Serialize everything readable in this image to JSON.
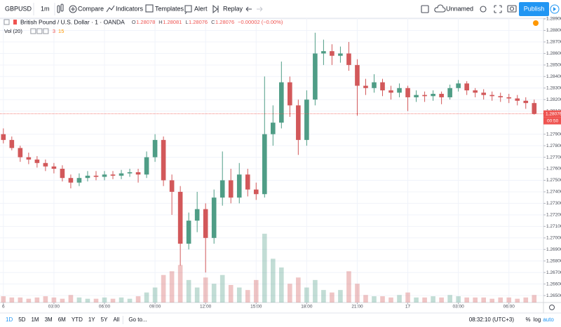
{
  "toolbar": {
    "symbol": "GBPUSD",
    "interval": "1m",
    "buttons": [
      "Compare",
      "Indicators",
      "Templates",
      "Alert",
      "Replay"
    ],
    "layout_name": "Unnamed",
    "publish": "Publish"
  },
  "legend": {
    "title": "British Pound / U.S. Dollar · 1 · OANDA",
    "ohlc": [
      {
        "key": "O",
        "value": "1.28078"
      },
      {
        "key": "H",
        "value": "1.28081"
      },
      {
        "key": "L",
        "value": "1.28076"
      },
      {
        "key": "C",
        "value": "1.28076"
      }
    ],
    "change": "−0.00002 (−0.00%)",
    "volume_label": "Vol (20)",
    "volume_values": [
      "3",
      "15"
    ]
  },
  "bottom_bar": {
    "ranges": [
      "1D",
      "5D",
      "1M",
      "3M",
      "6M",
      "YTD",
      "1Y",
      "5Y",
      "All"
    ],
    "goto": "Go to...",
    "clock": "08:32:10 (UTC+3)",
    "options": [
      "%",
      "log",
      "auto"
    ]
  },
  "chart_data": {
    "type": "candlestick",
    "x": [
      0,
      0.5,
      1,
      1.5,
      2,
      2.5,
      3,
      3.5,
      4,
      4.5,
      5,
      5.5,
      6,
      6.5,
      7,
      7.5,
      8,
      8.5,
      9,
      9.5,
      10,
      10.5,
      11,
      11.5,
      12,
      12.5,
      13,
      13.5,
      14,
      14.5,
      15,
      15.5,
      16,
      16.5,
      17,
      17.5,
      18,
      18.5,
      19,
      19.5,
      20,
      20.5,
      21,
      21.5,
      22,
      22.5,
      23,
      23.5,
      24,
      24.5,
      25,
      25.5,
      26,
      26.5,
      27,
      27.5,
      28,
      28.5,
      29,
      29.5,
      30,
      30.5,
      31,
      31.5
    ],
    "open": [
      1.279,
      1.2785,
      1.2778,
      1.277,
      1.2768,
      1.2765,
      1.2762,
      1.276,
      1.2752,
      1.2748,
      1.2752,
      1.2754,
      1.2753,
      1.2755,
      1.2754,
      1.2756,
      1.2757,
      1.2755,
      1.277,
      1.2785,
      1.275,
      1.274,
      1.2695,
      1.2715,
      1.2725,
      1.27,
      1.2735,
      1.275,
      1.2735,
      1.2755,
      1.2742,
      1.2738,
      1.279,
      1.28,
      1.2835,
      1.2815,
      1.2785,
      1.282,
      1.286,
      1.2862,
      1.2858,
      1.286,
      1.285,
      1.2832,
      1.283,
      1.2835,
      1.2828,
      1.2826,
      1.283,
      1.2822,
      1.2824,
      1.2823,
      1.2825,
      1.2822,
      1.283,
      1.2834,
      1.2828,
      1.2826,
      1.2824,
      1.2823,
      1.2822,
      1.2821,
      1.2819,
      1.2817
    ],
    "high": [
      1.2795,
      1.2788,
      1.278,
      1.2774,
      1.2771,
      1.2768,
      1.2765,
      1.2763,
      1.2755,
      1.2756,
      1.2758,
      1.2758,
      1.2758,
      1.2758,
      1.2759,
      1.276,
      1.276,
      1.2775,
      1.279,
      1.2788,
      1.2755,
      1.2745,
      1.2722,
      1.274,
      1.273,
      1.2742,
      1.2775,
      1.276,
      1.2765,
      1.276,
      1.2748,
      1.284,
      1.2815,
      1.2853,
      1.284,
      1.282,
      1.2828,
      1.2878,
      1.2872,
      1.2868,
      1.2866,
      1.287,
      1.2855,
      1.2838,
      1.2842,
      1.2838,
      1.2832,
      1.2834,
      1.2832,
      1.2828,
      1.2827,
      1.2828,
      1.2827,
      1.2833,
      1.2837,
      1.2836,
      1.283,
      1.2829,
      1.2827,
      1.2826,
      1.2825,
      1.2824,
      1.2822,
      1.282
    ],
    "low": [
      1.2782,
      1.2776,
      1.2766,
      1.2764,
      1.2761,
      1.2758,
      1.2756,
      1.2749,
      1.2743,
      1.2745,
      1.2749,
      1.275,
      1.275,
      1.2751,
      1.2751,
      1.2753,
      1.2748,
      1.2752,
      1.2766,
      1.2745,
      1.272,
      1.2676,
      1.269,
      1.2705,
      1.267,
      1.2695,
      1.2728,
      1.273,
      1.273,
      1.2736,
      1.2733,
      1.2735,
      1.278,
      1.2795,
      1.2805,
      1.2772,
      1.278,
      1.2815,
      1.285,
      1.285,
      1.2852,
      1.2845,
      1.2806,
      1.2824,
      1.2826,
      1.2823,
      1.282,
      1.2822,
      1.281,
      1.2818,
      1.2818,
      1.2819,
      1.2816,
      1.282,
      1.2827,
      1.2824,
      1.2822,
      1.282,
      1.2819,
      1.2818,
      1.2817,
      1.2815,
      1.2812,
      1.2807
    ],
    "close": [
      1.2785,
      1.2778,
      1.277,
      1.2768,
      1.2765,
      1.2762,
      1.276,
      1.2752,
      1.2748,
      1.2752,
      1.2754,
      1.2753,
      1.2755,
      1.2754,
      1.2756,
      1.2757,
      1.2755,
      1.277,
      1.2785,
      1.275,
      1.274,
      1.2695,
      1.2715,
      1.2725,
      1.27,
      1.2735,
      1.275,
      1.2735,
      1.2755,
      1.2742,
      1.2738,
      1.279,
      1.28,
      1.2835,
      1.2815,
      1.2785,
      1.282,
      1.286,
      1.2862,
      1.2858,
      1.286,
      1.285,
      1.2832,
      1.283,
      1.2835,
      1.2828,
      1.2826,
      1.283,
      1.2822,
      1.2824,
      1.2823,
      1.2825,
      1.2822,
      1.283,
      1.2834,
      1.2828,
      1.2826,
      1.2824,
      1.2823,
      1.2822,
      1.2821,
      1.2819,
      1.2817,
      1.28076
    ],
    "volume": [
      5,
      4,
      4,
      3,
      4,
      5,
      4,
      3,
      6,
      4,
      3,
      3,
      4,
      3,
      4,
      3,
      5,
      8,
      12,
      22,
      25,
      30,
      18,
      12,
      20,
      15,
      22,
      14,
      12,
      10,
      18,
      55,
      35,
      28,
      15,
      20,
      12,
      18,
      10,
      8,
      10,
      25,
      15,
      6,
      5,
      5,
      4,
      6,
      8,
      4,
      4,
      5,
      4,
      6,
      5,
      4,
      4,
      4,
      3,
      4,
      4,
      3,
      4,
      6
    ],
    "volume_lim": [
      0,
      56
    ],
    "up_color": "#4f9d86",
    "down_color": "#d2585a",
    "xlim": [
      -0.2,
      32.05
    ],
    "xticks": [
      {
        "value": 0,
        "label": "6"
      },
      {
        "value": 3,
        "label": "03:00"
      },
      {
        "value": 6,
        "label": "06:00"
      },
      {
        "value": 9,
        "label": "09:00"
      },
      {
        "value": 12,
        "label": "12:00"
      },
      {
        "value": 15,
        "label": "15:00"
      },
      {
        "value": 18,
        "label": "18:00"
      },
      {
        "value": 21,
        "label": "21:00"
      },
      {
        "value": 24,
        "label": "17"
      },
      {
        "value": 27,
        "label": "03:00"
      },
      {
        "value": 30,
        "label": "06:00"
      }
    ],
    "ylim": [
      1.2644,
      1.28906
    ],
    "yticks": [
      {
        "value": 1.265,
        "label": "1.26500"
      },
      {
        "value": 1.266,
        "label": "1.26600"
      },
      {
        "value": 1.267,
        "label": "1.26700"
      },
      {
        "value": 1.268,
        "label": "1.26800"
      },
      {
        "value": 1.269,
        "label": "1.26900"
      },
      {
        "value": 1.27,
        "label": "1.27000"
      },
      {
        "value": 1.271,
        "label": "1.27100"
      },
      {
        "value": 1.272,
        "label": "1.27200"
      },
      {
        "value": 1.273,
        "label": "1.27300"
      },
      {
        "value": 1.274,
        "label": "1.27400"
      },
      {
        "value": 1.275,
        "label": "1.27500"
      },
      {
        "value": 1.276,
        "label": "1.27600"
      },
      {
        "value": 1.277,
        "label": "1.27700"
      },
      {
        "value": 1.278,
        "label": "1.27800"
      },
      {
        "value": 1.279,
        "label": "1.27900"
      },
      {
        "value": 1.281,
        "label": "1.28100"
      },
      {
        "value": 1.282,
        "label": "1.28200"
      },
      {
        "value": 1.283,
        "label": "1.28300"
      },
      {
        "value": 1.284,
        "label": "1.28400"
      },
      {
        "value": 1.285,
        "label": "1.28500"
      },
      {
        "value": 1.286,
        "label": "1.28600"
      },
      {
        "value": 1.287,
        "label": "1.28700"
      },
      {
        "value": 1.288,
        "label": "1.28800"
      },
      {
        "value": 1.289,
        "label": "1.28900"
      }
    ],
    "grid": true,
    "last_price": {
      "value": 1.28076,
      "label": "1.28076"
    },
    "countdown": "00:50",
    "last_price_color": "#ef5350"
  }
}
